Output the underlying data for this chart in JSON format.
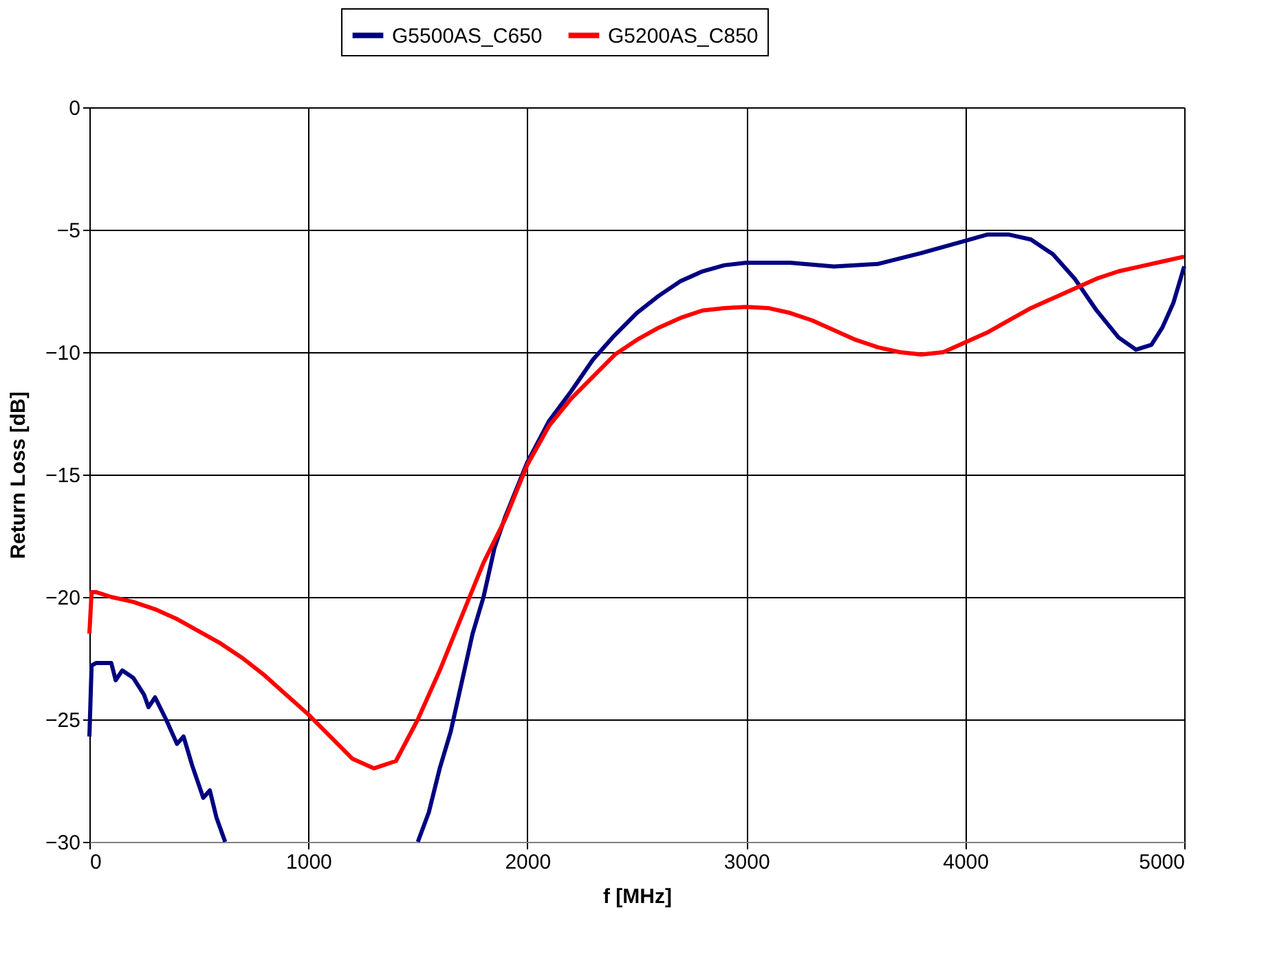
{
  "chart_data": {
    "type": "line",
    "xlabel": "f [MHz]",
    "ylabel": "Return Loss [dB]",
    "xlim": [
      0,
      5000
    ],
    "xticks": [
      0,
      1000,
      2000,
      3000,
      4000,
      5000
    ],
    "ylim": [
      -30,
      0
    ],
    "yticks": [
      -30,
      -25,
      -20,
      -15,
      -10,
      -5,
      0
    ],
    "grid": true,
    "legend": "top",
    "marker": "none",
    "line_style": "solid",
    "series": [
      {
        "name": "G5500AS_C650",
        "color": "#000080",
        "x": [
          0,
          10,
          30,
          100,
          120,
          150,
          200,
          250,
          270,
          300,
          350,
          400,
          430,
          470,
          520,
          550,
          580,
          620,
          1000,
          1500,
          1550,
          1600,
          1650,
          1700,
          1750,
          1800,
          1850,
          1900,
          2000,
          2100,
          2200,
          2300,
          2400,
          2500,
          2600,
          2700,
          2800,
          2900,
          3000,
          3200,
          3400,
          3600,
          3800,
          4000,
          4100,
          4200,
          4300,
          4400,
          4500,
          4600,
          4700,
          4780,
          4850,
          4900,
          4950,
          5000
        ],
        "values": [
          -25.7,
          -22.8,
          -22.7,
          -22.7,
          -23.4,
          -23.0,
          -23.3,
          -24.0,
          -24.5,
          -24.1,
          -25.0,
          -26.0,
          -25.7,
          -26.9,
          -28.2,
          -27.9,
          -29.0,
          -30,
          null,
          -30,
          -28.8,
          -27.0,
          -25.5,
          -23.5,
          -21.5,
          -20.0,
          -18.0,
          -16.7,
          -14.5,
          -12.8,
          -11.6,
          -10.3,
          -9.3,
          -8.4,
          -7.7,
          -7.1,
          -6.7,
          -6.45,
          -6.35,
          -6.35,
          -6.5,
          -6.4,
          -5.95,
          -5.45,
          -5.2,
          -5.2,
          -5.4,
          -6.0,
          -7.0,
          -8.3,
          -9.4,
          -9.9,
          -9.7,
          -9.0,
          -8.0,
          -6.5
        ]
      },
      {
        "name": "G5200AS_C850",
        "color": "#ff0000",
        "x": [
          0,
          10,
          30,
          100,
          200,
          300,
          400,
          500,
          600,
          700,
          800,
          900,
          1000,
          1100,
          1200,
          1300,
          1400,
          1500,
          1600,
          1700,
          1800,
          1900,
          2000,
          2100,
          2200,
          2300,
          2400,
          2500,
          2600,
          2700,
          2800,
          2900,
          3000,
          3100,
          3200,
          3300,
          3400,
          3500,
          3600,
          3700,
          3800,
          3900,
          4000,
          4100,
          4200,
          4300,
          4400,
          4500,
          4600,
          4700,
          4800,
          4900,
          5000
        ],
        "values": [
          -21.5,
          -19.8,
          -19.8,
          -20.0,
          -20.2,
          -20.5,
          -20.9,
          -21.4,
          -21.9,
          -22.5,
          -23.2,
          -24.0,
          -24.8,
          -25.7,
          -26.6,
          -27.0,
          -26.7,
          -25.0,
          -23.0,
          -20.8,
          -18.6,
          -16.8,
          -14.6,
          -13.0,
          -11.9,
          -11.0,
          -10.1,
          -9.5,
          -9.0,
          -8.6,
          -8.3,
          -8.2,
          -8.15,
          -8.2,
          -8.4,
          -8.7,
          -9.1,
          -9.5,
          -9.8,
          -10.0,
          -10.1,
          -10.0,
          -9.6,
          -9.2,
          -8.7,
          -8.2,
          -7.8,
          -7.4,
          -7.0,
          -6.7,
          -6.5,
          -6.3,
          -6.1
        ]
      }
    ]
  }
}
